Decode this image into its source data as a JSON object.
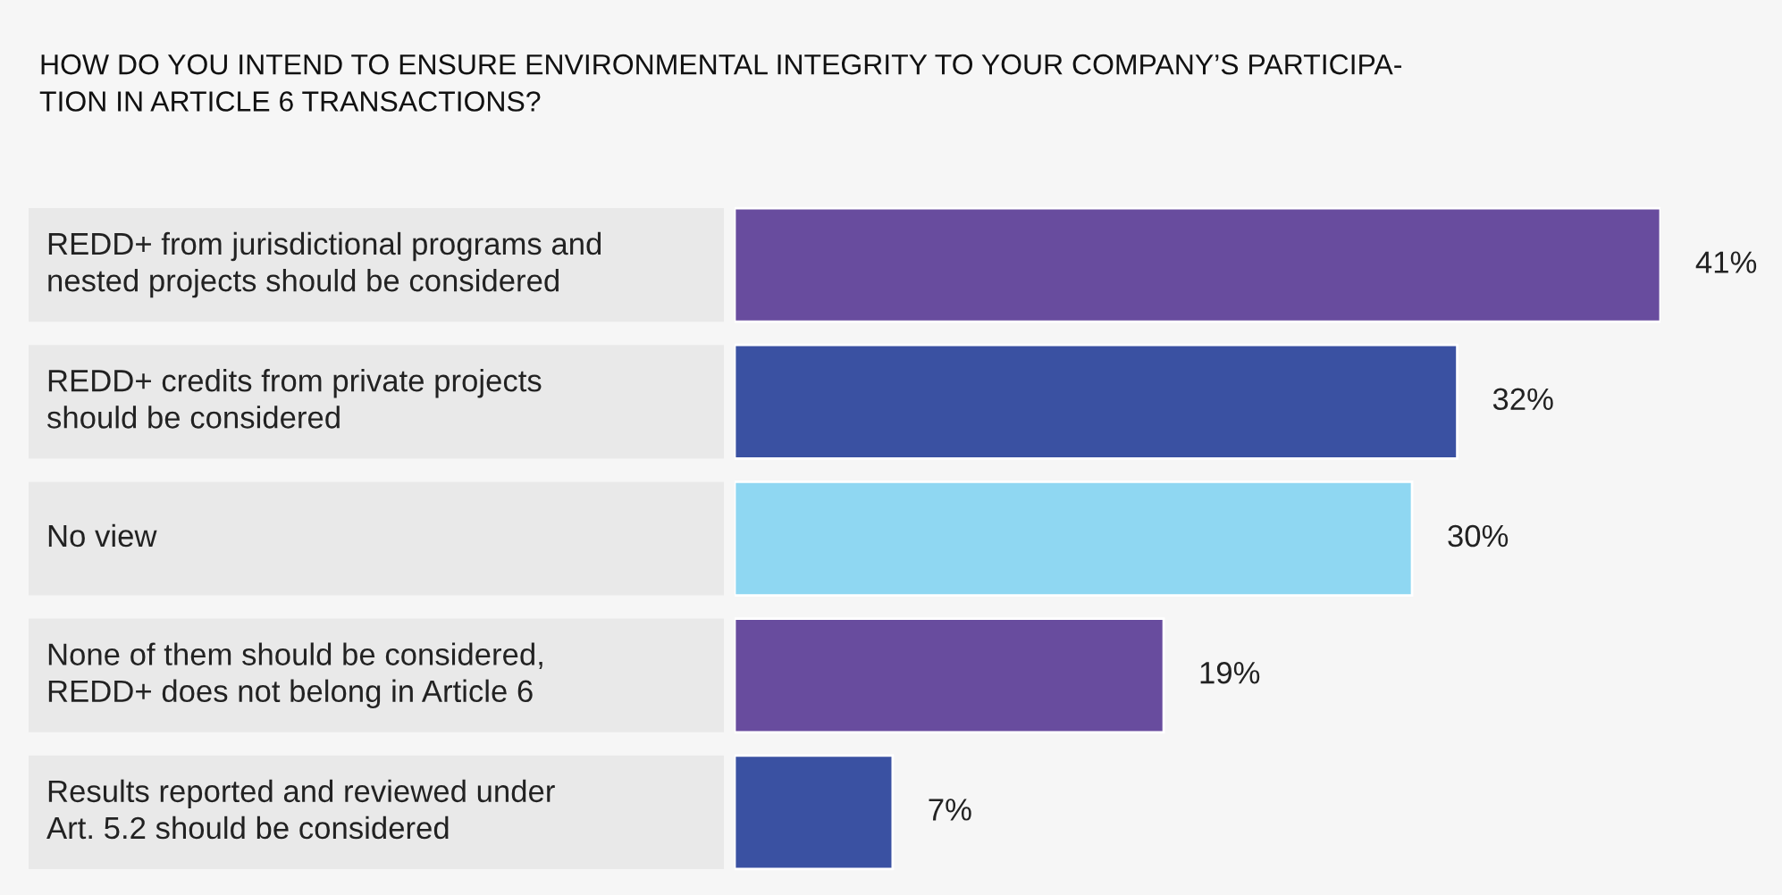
{
  "chart_data": {
    "type": "bar",
    "orientation": "horizontal",
    "title": "HOW DO YOU INTEND TO ENSURE ENVIRONMENTAL INTEGRITY TO YOUR COMPANY’S PARTICIPA-\nTION IN ARTICLE 6 TRANSACTIONS?",
    "categories": [
      "REDD+ from jurisdictional programs and\nnested projects should be considered",
      "REDD+ credits from private projects\nshould be considered",
      "No view",
      "None of them should be considered,\nREDD+ does not belong in Article 6",
      "Results reported and reviewed under\nArt. 5.2 should be considered"
    ],
    "values": [
      41,
      32,
      30,
      19,
      7
    ],
    "colors": [
      "#684c9e",
      "#3a51a2",
      "#8fd7f2",
      "#684c9e",
      "#3a51a2"
    ],
    "value_labels": [
      "41%",
      "32%",
      "30%",
      "19%",
      "7%"
    ]
  }
}
